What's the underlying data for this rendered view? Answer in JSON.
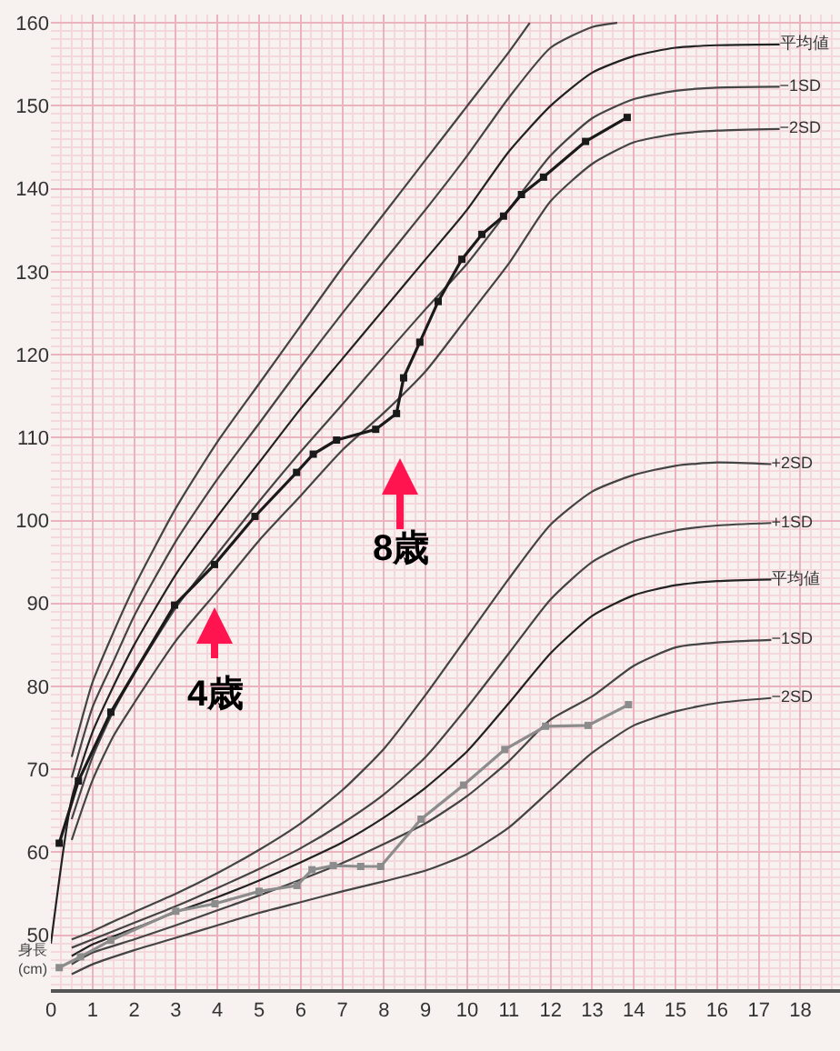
{
  "chart_data": {
    "type": "line",
    "ylabel": "身長(cm)",
    "xlim": [
      0,
      18.95
    ],
    "ylim": [
      43.5,
      161
    ],
    "xticks": [
      0,
      1,
      2,
      3,
      4,
      5,
      6,
      7,
      8,
      9,
      10,
      11,
      12,
      13,
      14,
      15,
      16,
      17,
      18
    ],
    "yticks": [
      50,
      60,
      70,
      80,
      90,
      100,
      110,
      120,
      130,
      140,
      150,
      160
    ],
    "grid": true,
    "marker": "none",
    "line_style": "solid",
    "annotations": [
      "4歳",
      "8歳"
    ],
    "series": [
      {
        "name": null,
        "color": "#444444",
        "x": [
          0.5,
          1,
          1.5,
          2,
          3,
          4,
          5,
          6,
          7,
          8,
          9,
          10,
          11,
          11.5
        ],
        "values": [
          71.5,
          80.5,
          86.5,
          92,
          101.5,
          109.5,
          116.5,
          123.5,
          130.5,
          137,
          143.5,
          150,
          156.5,
          160
        ]
      },
      {
        "name": null,
        "color": "#444444",
        "x": [
          0.5,
          1,
          1.5,
          2,
          3,
          4,
          5,
          6,
          7,
          8,
          9,
          10,
          11,
          12,
          13,
          13.6
        ],
        "values": [
          69,
          77.5,
          83,
          88.5,
          97.5,
          105,
          111.7,
          118.5,
          125,
          131.3,
          137.5,
          144,
          151,
          157,
          159.5,
          160
        ]
      },
      {
        "name": "平均値",
        "color": "#222222",
        "x": [
          0,
          0.5,
          1,
          1.5,
          2,
          3,
          4,
          5,
          6,
          7,
          8,
          9,
          10,
          11,
          12,
          13,
          14,
          15,
          16,
          17.5
        ],
        "values": [
          49,
          66.5,
          74.5,
          80,
          85,
          93.5,
          100.5,
          107,
          113.5,
          119.5,
          125.5,
          131.5,
          137.5,
          144.5,
          150,
          154,
          156,
          157,
          157.3,
          157.4
        ]
      },
      {
        "name": "−1SD",
        "color": "#444444",
        "x": [
          0.5,
          1,
          1.5,
          2,
          3,
          4,
          5,
          6,
          7,
          8,
          9,
          10,
          11,
          12,
          13,
          14,
          15,
          16,
          17.5
        ],
        "values": [
          64,
          71.5,
          77,
          81.5,
          89.5,
          96,
          102.3,
          108.3,
          114,
          119.8,
          125.5,
          131,
          137.5,
          144,
          148.5,
          150.8,
          151.8,
          152.2,
          152.3
        ]
      },
      {
        "name": "−2SD",
        "color": "#444444",
        "x": [
          0.5,
          1,
          1.5,
          2,
          3,
          4,
          5,
          6,
          7,
          8,
          9,
          10,
          11,
          12,
          13,
          14,
          15,
          16,
          17.5
        ],
        "values": [
          61.5,
          68.7,
          74,
          78,
          85.5,
          91.5,
          97.6,
          103,
          108.5,
          113,
          118,
          124.5,
          131,
          138.5,
          143,
          145.6,
          146.6,
          147,
          147.2
        ]
      },
      {
        "name": null,
        "color": "#1a1a1a",
        "marker": "square",
        "x": [
          0.2,
          0.66,
          1.44,
          2.97,
          3.93,
          4.9,
          5.9,
          6.3,
          6.86,
          7.8,
          8.3,
          8.47,
          8.86,
          9.3,
          9.87,
          10.35,
          10.87,
          11.3,
          11.83,
          12.84,
          13.84
        ],
        "values": [
          61.1,
          68.6,
          76.9,
          89.8,
          94.7,
          100.5,
          105.8,
          108,
          109.7,
          111,
          112.9,
          117.2,
          121.5,
          126.4,
          131.5,
          134.5,
          136.7,
          139.3,
          141.4,
          145.7,
          148.6
        ]
      },
      {
        "name": "+2SD",
        "color": "#444444",
        "x": [
          0.5,
          1,
          2,
          3,
          4,
          5,
          6,
          7,
          8,
          9,
          10,
          11,
          12,
          13,
          14,
          15,
          16,
          17.3
        ],
        "values": [
          49.5,
          50.5,
          52.8,
          55,
          57.5,
          60.3,
          63.5,
          67.5,
          72.5,
          79,
          86,
          93,
          99.5,
          103.5,
          105.5,
          106.6,
          107,
          106.8
        ]
      },
      {
        "name": "+1SD",
        "color": "#444444",
        "x": [
          0.5,
          1,
          2,
          3,
          4,
          5,
          6,
          7,
          8,
          9,
          10,
          11,
          12,
          13,
          14,
          15,
          16,
          17.3
        ],
        "values": [
          48.5,
          49.5,
          51.5,
          53.5,
          55.7,
          58,
          60.5,
          63.5,
          67,
          71.5,
          77.5,
          84,
          90.5,
          95,
          97.5,
          98.8,
          99.4,
          99.7
        ]
      },
      {
        "name": "平均値",
        "color": "#222222",
        "x": [
          0.5,
          1,
          2,
          3,
          4,
          5,
          6,
          7,
          8,
          9,
          10,
          11,
          12,
          13,
          14,
          15,
          16,
          17.3
        ],
        "values": [
          47.5,
          48.9,
          50.8,
          52.8,
          54.6,
          56.6,
          58.8,
          61.2,
          64.2,
          67.8,
          72.2,
          78,
          84,
          88.5,
          91,
          92.2,
          92.7,
          92.9
        ]
      },
      {
        "name": "−1SD",
        "color": "#444444",
        "x": [
          0.5,
          1,
          2,
          3,
          4,
          5,
          6,
          7,
          8,
          9,
          10,
          11,
          12,
          13,
          14,
          15,
          16,
          17.3
        ],
        "values": [
          46.5,
          47.9,
          49.5,
          51.2,
          53,
          54.8,
          56.7,
          58.7,
          61,
          63.5,
          66.8,
          71,
          76,
          78.8,
          82.5,
          84.7,
          85.3,
          85.6
        ]
      },
      {
        "name": "−2SD",
        "color": "#444444",
        "x": [
          0.5,
          1,
          2,
          3,
          4,
          5,
          6,
          7,
          8,
          9,
          10,
          11,
          12,
          13,
          14,
          15,
          16,
          17.3
        ],
        "values": [
          45.3,
          46.5,
          48.2,
          49.7,
          51.2,
          52.7,
          54,
          55.3,
          56.5,
          57.8,
          59.8,
          63,
          67.5,
          72,
          75.3,
          77,
          78,
          78.6
        ]
      },
      {
        "name": null,
        "color": "#8c8c8c",
        "marker": "square",
        "x": [
          0.2,
          0.71,
          1.44,
          3.0,
          3.94,
          5.0,
          5.91,
          6.27,
          6.78,
          7.44,
          7.92,
          8.89,
          9.91,
          10.9,
          11.88,
          12.9,
          13.87
        ],
        "values": [
          46.1,
          47.4,
          49.4,
          52.9,
          53.8,
          55.3,
          56.0,
          57.9,
          58.4,
          58.3,
          58.3,
          64.0,
          68.1,
          72.4,
          75.2,
          75.3,
          77.8
        ]
      }
    ]
  }
}
